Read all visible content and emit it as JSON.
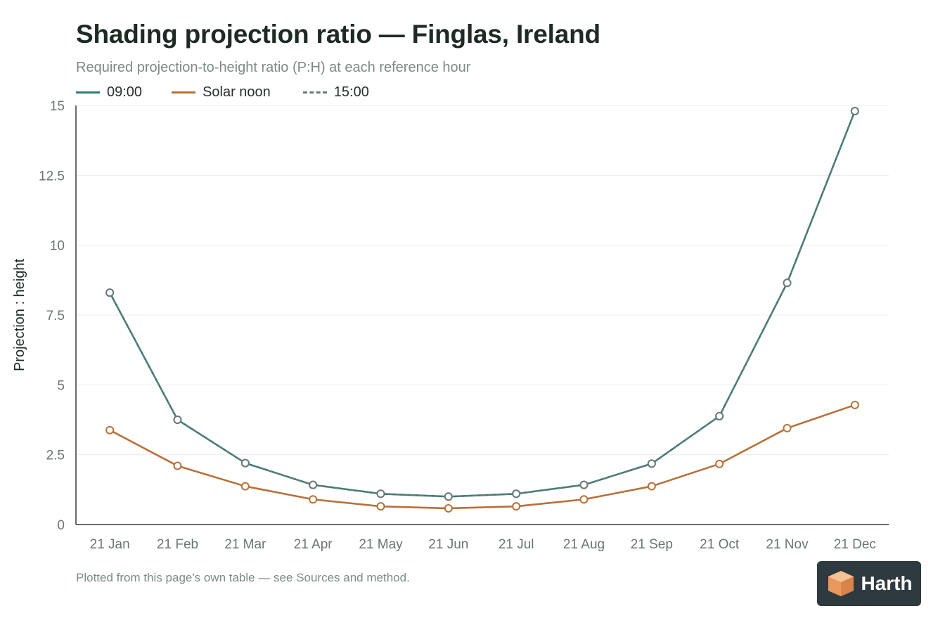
{
  "title": "Shading projection ratio — Finglas, Ireland",
  "subtitle": "Required projection-to-height ratio (P:H) at each reference hour",
  "footnote": "Plotted from this page's own table — see Sources and method.",
  "brand": {
    "name": "Harth",
    "logo_icon": "cube-logo-icon",
    "logo_color": "#f0a66e",
    "background": "#2f3a40"
  },
  "colors": {
    "grid": "#e9ecea",
    "axis": "#3a3f3c",
    "tick_text": "#6b7570",
    "ylabel_text": "#1f2a24"
  },
  "chart_data": {
    "type": "line",
    "title": "Shading projection ratio — Finglas, Ireland",
    "subtitle": "Required projection-to-height ratio (P:H) at each reference hour",
    "xlabel": "",
    "ylabel": "Projection : height",
    "ylim": [
      0,
      15
    ],
    "yticks": [
      0,
      2.5,
      5,
      7.5,
      10,
      12.5,
      15
    ],
    "ytick_labels": [
      "0",
      "2.5",
      "5",
      "7.5",
      "10",
      "12.5",
      "15"
    ],
    "grid": true,
    "legend_position": "top-left",
    "categories": [
      "21 Jan",
      "21 Feb",
      "21 Mar",
      "21 Apr",
      "21 May",
      "21 Jun",
      "21 Jul",
      "21 Aug",
      "21 Sep",
      "21 Oct",
      "21 Nov",
      "21 Dec"
    ],
    "series": [
      {
        "name": "09:00",
        "color": "#2f7d74",
        "dash": false,
        "values": [
          8.3,
          3.75,
          2.2,
          1.42,
          1.1,
          1.0,
          1.1,
          1.42,
          2.18,
          3.88,
          8.65,
          14.8
        ]
      },
      {
        "name": "Solar noon",
        "color": "#b8703a",
        "dash": false,
        "values": [
          3.38,
          2.1,
          1.37,
          0.9,
          0.65,
          0.58,
          0.65,
          0.9,
          1.37,
          2.17,
          3.45,
          4.28
        ]
      },
      {
        "name": "15:00",
        "color": "#6b7a78",
        "dash": true,
        "values": [
          8.3,
          3.75,
          2.2,
          1.42,
          1.1,
          1.0,
          1.1,
          1.42,
          2.18,
          3.88,
          8.65,
          14.8
        ]
      }
    ]
  }
}
